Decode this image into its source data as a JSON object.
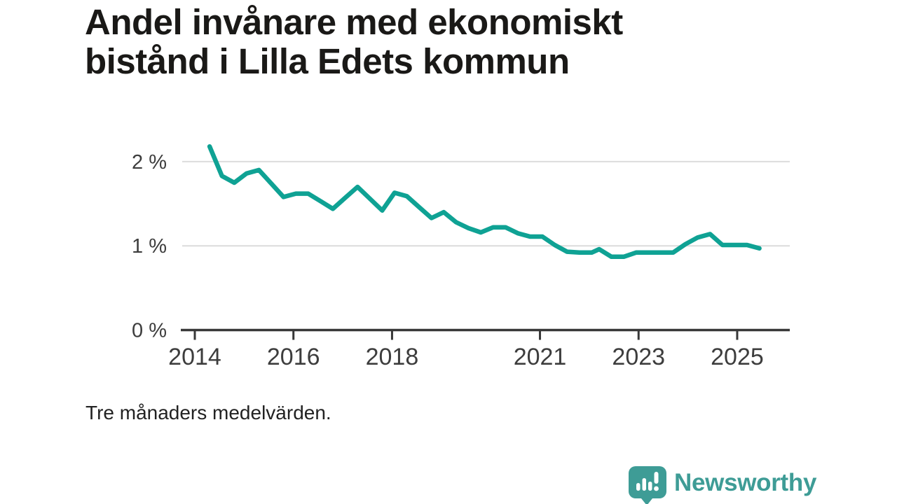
{
  "page": {
    "background": "#ffffff"
  },
  "header": {
    "title_lines": [
      "Andel invånare med ekonomiskt",
      "bistånd i Lilla Edets kommun"
    ]
  },
  "note": "Tre månaders medelvärden.",
  "branding": {
    "wordmark": "Newsworthy",
    "icon": "newsworthy-speech-bubble-chart-icon",
    "color": "#3e9c96"
  },
  "colors": {
    "line": "#0fa294",
    "grid": "#dcdcdc",
    "axis": "#383838",
    "tick_label": "#3d3d3d",
    "title_text": "#1a1917"
  },
  "chart_data": {
    "type": "line",
    "title": "Andel invånare med ekonomiskt bistånd i Lilla Edets kommun",
    "subtitle": "Tre månaders medelvärden.",
    "unit": "%",
    "grid": "horizontal",
    "legend": "none",
    "xlim": [
      2013.74,
      2026.05
    ],
    "ylim": [
      0,
      2.3
    ],
    "x_ticks": [
      {
        "value": 2014,
        "label": "2014"
      },
      {
        "value": 2016,
        "label": "2016"
      },
      {
        "value": 2018,
        "label": "2018"
      },
      {
        "value": 2021,
        "label": "2021"
      },
      {
        "value": 2023,
        "label": "2023"
      },
      {
        "value": 2025,
        "label": "2025"
      }
    ],
    "y_ticks": [
      {
        "value": 0,
        "label": "0 %"
      },
      {
        "value": 1,
        "label": "1 %"
      },
      {
        "value": 2,
        "label": "2 %"
      }
    ],
    "series": [
      {
        "name": "Andel invånare med ekonomiskt bistånd",
        "points": [
          [
            2014.3,
            2.18
          ],
          [
            2014.55,
            1.83
          ],
          [
            2014.8,
            1.75
          ],
          [
            2015.05,
            1.86
          ],
          [
            2015.3,
            1.9
          ],
          [
            2015.55,
            1.74
          ],
          [
            2015.8,
            1.58
          ],
          [
            2016.05,
            1.62
          ],
          [
            2016.3,
            1.62
          ],
          [
            2016.55,
            1.53
          ],
          [
            2016.8,
            1.44
          ],
          [
            2017.05,
            1.57
          ],
          [
            2017.3,
            1.7
          ],
          [
            2017.55,
            1.56
          ],
          [
            2017.8,
            1.42
          ],
          [
            2018.05,
            1.63
          ],
          [
            2018.3,
            1.59
          ],
          [
            2018.55,
            1.46
          ],
          [
            2018.8,
            1.33
          ],
          [
            2019.05,
            1.4
          ],
          [
            2019.3,
            1.28
          ],
          [
            2019.55,
            1.21
          ],
          [
            2019.8,
            1.16
          ],
          [
            2020.05,
            1.22
          ],
          [
            2020.3,
            1.22
          ],
          [
            2020.55,
            1.15
          ],
          [
            2020.8,
            1.11
          ],
          [
            2021.05,
            1.11
          ],
          [
            2021.3,
            1.01
          ],
          [
            2021.55,
            0.93
          ],
          [
            2021.8,
            0.92
          ],
          [
            2022.05,
            0.92
          ],
          [
            2022.2,
            0.96
          ],
          [
            2022.45,
            0.87
          ],
          [
            2022.7,
            0.87
          ],
          [
            2022.95,
            0.92
          ],
          [
            2023.2,
            0.92
          ],
          [
            2023.45,
            0.92
          ],
          [
            2023.7,
            0.92
          ],
          [
            2023.95,
            1.02
          ],
          [
            2024.2,
            1.1
          ],
          [
            2024.45,
            1.14
          ],
          [
            2024.7,
            1.01
          ],
          [
            2024.95,
            1.01
          ],
          [
            2025.2,
            1.01
          ],
          [
            2025.45,
            0.97
          ]
        ]
      }
    ]
  }
}
